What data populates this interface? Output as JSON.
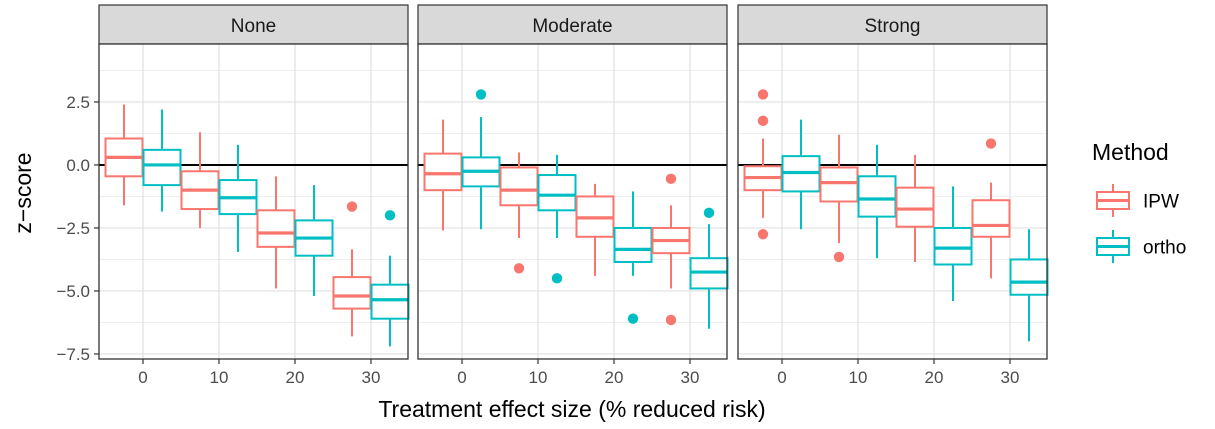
{
  "chart_data": {
    "type": "boxplot",
    "xlabel": "Treatment effect size (% reduced risk)",
    "ylabel": "z−score",
    "ylim": [
      -7.7,
      4.8
    ],
    "yticks": [
      2.5,
      0.0,
      -2.5,
      -5.0,
      -7.5
    ],
    "ytick_labels": [
      "2.5",
      "0.0",
      "−2.5",
      "−5.0",
      "−7.5"
    ],
    "categories": [
      "0",
      "10",
      "20",
      "30"
    ],
    "hline": 0,
    "legend": {
      "title": "Method",
      "position": "right"
    },
    "series_meta": [
      {
        "name": "IPW",
        "color": "#F8766D"
      },
      {
        "name": "ortho",
        "color": "#00BFC4"
      }
    ],
    "panels": [
      {
        "title": "None",
        "boxes": [
          {
            "category": "0",
            "series": "IPW",
            "whisker_low": -1.6,
            "q1": -0.45,
            "median": 0.3,
            "q3": 1.05,
            "whisker_high": 2.4,
            "outliers": []
          },
          {
            "category": "0",
            "series": "ortho",
            "whisker_low": -1.85,
            "q1": -0.8,
            "median": 0.0,
            "q3": 0.6,
            "whisker_high": 2.2,
            "outliers": []
          },
          {
            "category": "10",
            "series": "IPW",
            "whisker_low": -2.5,
            "q1": -1.75,
            "median": -1.0,
            "q3": -0.25,
            "whisker_high": 1.3,
            "outliers": []
          },
          {
            "category": "10",
            "series": "ortho",
            "whisker_low": -3.45,
            "q1": -1.95,
            "median": -1.3,
            "q3": -0.6,
            "whisker_high": 0.8,
            "outliers": []
          },
          {
            "category": "20",
            "series": "IPW",
            "whisker_low": -4.9,
            "q1": -3.25,
            "median": -2.7,
            "q3": -1.8,
            "whisker_high": -0.45,
            "outliers": []
          },
          {
            "category": "20",
            "series": "ortho",
            "whisker_low": -5.2,
            "q1": -3.6,
            "median": -2.9,
            "q3": -2.2,
            "whisker_high": -0.8,
            "outliers": []
          },
          {
            "category": "30",
            "series": "IPW",
            "whisker_low": -6.8,
            "q1": -5.7,
            "median": -5.2,
            "q3": -4.45,
            "whisker_high": -3.35,
            "outliers": [
              -1.65
            ]
          },
          {
            "category": "30",
            "series": "ortho",
            "whisker_low": -7.2,
            "q1": -6.1,
            "median": -5.35,
            "q3": -4.75,
            "whisker_high": -3.6,
            "outliers": [
              -2.0
            ]
          }
        ]
      },
      {
        "title": "Moderate",
        "boxes": [
          {
            "category": "0",
            "series": "IPW",
            "whisker_low": -2.6,
            "q1": -1.0,
            "median": -0.35,
            "q3": 0.45,
            "whisker_high": 1.8,
            "outliers": []
          },
          {
            "category": "0",
            "series": "ortho",
            "whisker_low": -2.55,
            "q1": -0.85,
            "median": -0.25,
            "q3": 0.3,
            "whisker_high": 1.9,
            "outliers": [
              2.8
            ]
          },
          {
            "category": "10",
            "series": "IPW",
            "whisker_low": -2.9,
            "q1": -1.6,
            "median": -1.0,
            "q3": -0.1,
            "whisker_high": 0.5,
            "outliers": [
              -4.1
            ]
          },
          {
            "category": "10",
            "series": "ortho",
            "whisker_low": -2.9,
            "q1": -1.8,
            "median": -1.2,
            "q3": -0.4,
            "whisker_high": 0.4,
            "outliers": [
              -4.5
            ]
          },
          {
            "category": "20",
            "series": "IPW",
            "whisker_low": -4.4,
            "q1": -2.85,
            "median": -2.1,
            "q3": -1.25,
            "whisker_high": -0.75,
            "outliers": []
          },
          {
            "category": "20",
            "series": "ortho",
            "whisker_low": -4.4,
            "q1": -3.85,
            "median": -3.35,
            "q3": -2.5,
            "whisker_high": -1.05,
            "outliers": [
              -6.1
            ]
          },
          {
            "category": "30",
            "series": "IPW",
            "whisker_low": -4.9,
            "q1": -3.5,
            "median": -3.0,
            "q3": -2.5,
            "whisker_high": -1.6,
            "outliers": [
              -0.55,
              -6.15
            ]
          },
          {
            "category": "30",
            "series": "ortho",
            "whisker_low": -6.5,
            "q1": -4.9,
            "median": -4.25,
            "q3": -3.7,
            "whisker_high": -2.35,
            "outliers": [
              -1.9
            ]
          }
        ]
      },
      {
        "title": "Strong",
        "boxes": [
          {
            "category": "0",
            "series": "IPW",
            "whisker_low": -2.1,
            "q1": -1.0,
            "median": -0.5,
            "q3": -0.05,
            "whisker_high": 1.05,
            "outliers": [
              2.8,
              1.75,
              -2.75
            ]
          },
          {
            "category": "0",
            "series": "ortho",
            "whisker_low": -2.55,
            "q1": -1.05,
            "median": -0.3,
            "q3": 0.35,
            "whisker_high": 1.8,
            "outliers": []
          },
          {
            "category": "10",
            "series": "IPW",
            "whisker_low": -3.1,
            "q1": -1.45,
            "median": -0.7,
            "q3": -0.1,
            "whisker_high": 1.2,
            "outliers": [
              -3.65
            ]
          },
          {
            "category": "10",
            "series": "ortho",
            "whisker_low": -3.7,
            "q1": -2.05,
            "median": -1.35,
            "q3": -0.45,
            "whisker_high": 0.8,
            "outliers": []
          },
          {
            "category": "20",
            "series": "IPW",
            "whisker_low": -3.85,
            "q1": -2.45,
            "median": -1.75,
            "q3": -0.9,
            "whisker_high": 0.4,
            "outliers": []
          },
          {
            "category": "20",
            "series": "ortho",
            "whisker_low": -5.4,
            "q1": -3.95,
            "median": -3.3,
            "q3": -2.5,
            "whisker_high": -0.85,
            "outliers": []
          },
          {
            "category": "30",
            "series": "IPW",
            "whisker_low": -4.5,
            "q1": -2.85,
            "median": -2.4,
            "q3": -1.4,
            "whisker_high": -0.7,
            "outliers": [
              0.85
            ]
          },
          {
            "category": "30",
            "series": "ortho",
            "whisker_low": -7.0,
            "q1": -5.15,
            "median": -4.65,
            "q3": -3.75,
            "whisker_high": -2.55,
            "outliers": []
          }
        ]
      }
    ]
  }
}
